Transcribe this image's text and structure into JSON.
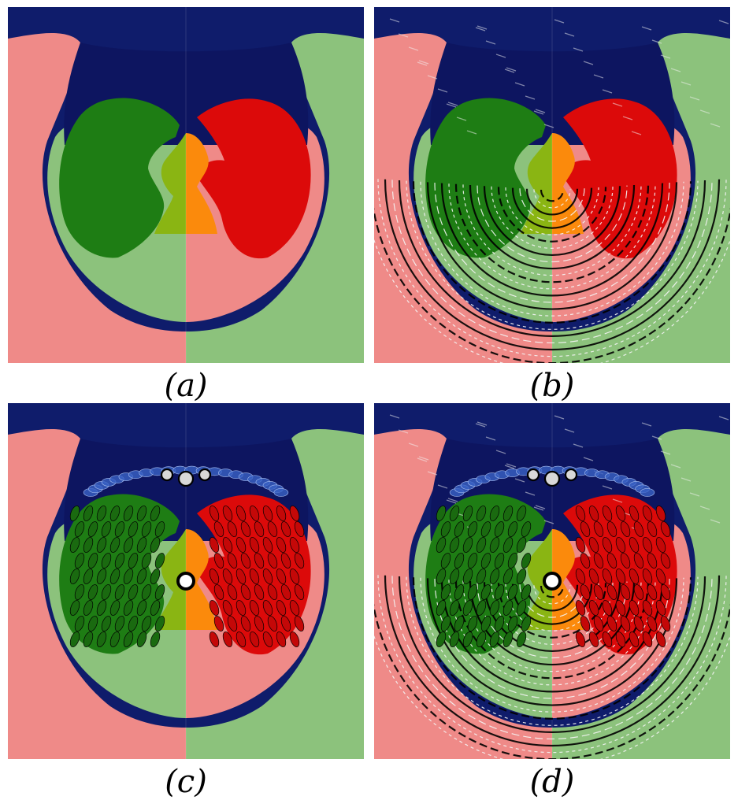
{
  "figure": {
    "panels": [
      {
        "id": "a",
        "caption": "(a)",
        "streamlines": false,
        "ellipses": false
      },
      {
        "id": "b",
        "caption": "(b)",
        "streamlines": true,
        "ellipses": false
      },
      {
        "id": "c",
        "caption": "(c)",
        "streamlines": false,
        "ellipses": true
      },
      {
        "id": "d",
        "caption": "(d)",
        "streamlines": true,
        "ellipses": true
      }
    ],
    "colors": {
      "background": "#0f1c6b",
      "upper_region": "#0d1560",
      "outer_left_band": "#ef8a88",
      "outer_right_band": "#8cc27c",
      "inner_left_band": "#8cc27c",
      "inner_right_band": "#ef8a88",
      "left_lobe": "#1e7d14",
      "right_lobe": "#dc0a0a",
      "center_left": "#8ab513",
      "center_right": "#fb8a0c",
      "streamline_dark": "#000000",
      "streamline_light": "#f4f4f4",
      "ellipse_top": "#3a62c4"
    }
  }
}
